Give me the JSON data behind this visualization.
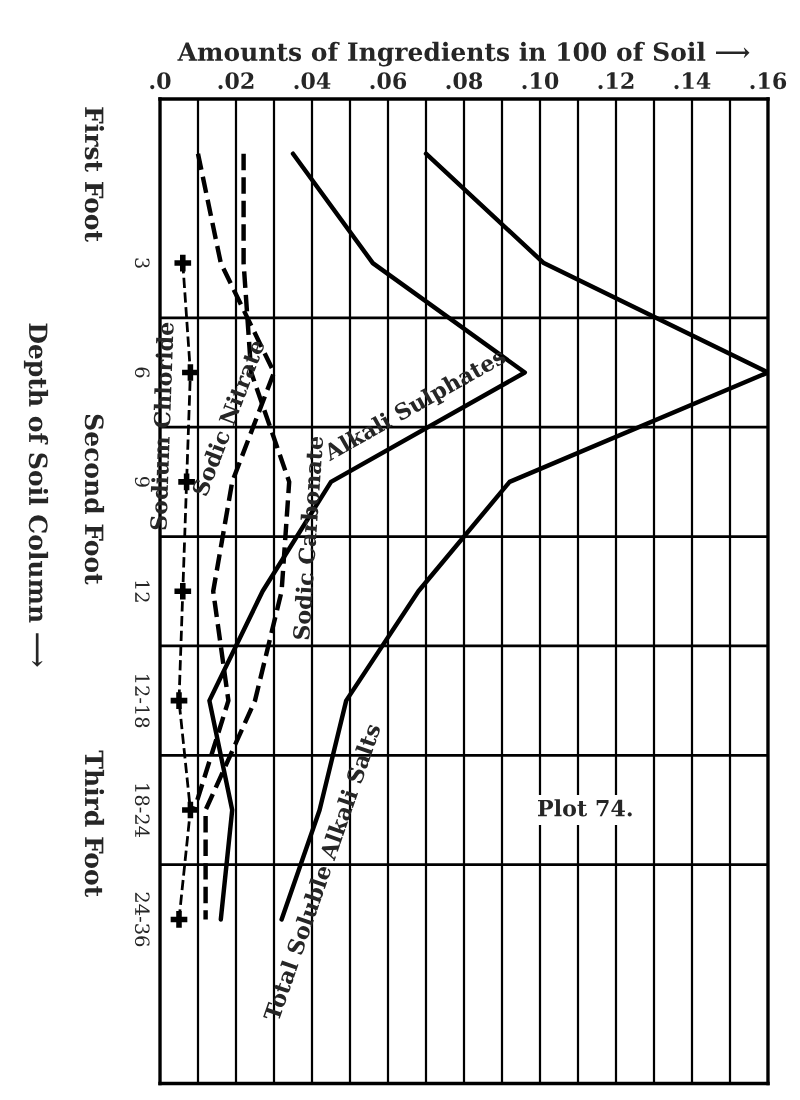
{
  "chart_data": {
    "type": "line",
    "orientation": "horizontal",
    "xlabel": "Amounts of Ingredients in 100 of Soil ⟶",
    "ylabel": "Depth of Soil Column ⟶",
    "categories": [
      null,
      "3",
      "6",
      "9",
      "12",
      "12-18",
      "18-24",
      "24-36"
    ],
    "xlim": [
      0,
      0.16
    ],
    "xticks": [
      {
        "value": 0,
        "label": ".0"
      },
      {
        "value": 0.01,
        "label": null
      },
      {
        "value": 0.02,
        "label": ".02"
      },
      {
        "value": 0.03,
        "label": null
      },
      {
        "value": 0.04,
        "label": ".04"
      },
      {
        "value": 0.05,
        "label": null
      },
      {
        "value": 0.06,
        "label": ".06"
      },
      {
        "value": 0.07,
        "label": null
      },
      {
        "value": 0.08,
        "label": ".08"
      },
      {
        "value": 0.09,
        "label": null
      },
      {
        "value": 0.1,
        "label": ".10"
      },
      {
        "value": 0.11,
        "label": null
      },
      {
        "value": 0.12,
        "label": ".12"
      },
      {
        "value": 0.13,
        "label": null
      },
      {
        "value": 0.14,
        "label": ".14"
      },
      {
        "value": 0.15,
        "label": null
      },
      {
        "value": 0.16,
        "label": ".16"
      }
    ],
    "grid": "x",
    "series": [
      {
        "name": "Total Soluble Alkali Salts",
        "color": "#000000",
        "line_style": "solid",
        "marker": "none",
        "values": [
          0.07,
          0.101,
          0.16,
          0.092,
          0.068,
          0.049,
          0.042,
          0.032
        ]
      },
      {
        "name": "Alkali Sulphates",
        "color": "#000000",
        "line_style": "solid",
        "marker": "none",
        "values": [
          0.035,
          0.056,
          0.096,
          0.045,
          0.027,
          0.013,
          0.019,
          0.016
        ]
      },
      {
        "name": "Sodic Carbonate",
        "color": "#000000",
        "line_style": "dashed",
        "marker": "none",
        "values": [
          0.022,
          0.022,
          0.024,
          0.034,
          0.032,
          0.025,
          0.012,
          0.012
        ]
      },
      {
        "name": "Sodic Nitrate",
        "color": "#000000",
        "line_style": "dashed",
        "marker": "none",
        "values": [
          0.01,
          0.016,
          0.03,
          0.019,
          0.014,
          0.018,
          0.009,
          null
        ]
      },
      {
        "name": "Sodium Chloride",
        "color": "#000000",
        "line_style": "dashed",
        "marker": "cross",
        "values": [
          null,
          0.006,
          0.008,
          0.007,
          0.006,
          0.005,
          0.008,
          0.005
        ]
      }
    ],
    "annotations": [
      "First Foot",
      "Second Foot",
      "Third Foot",
      "Plot 74."
    ]
  }
}
